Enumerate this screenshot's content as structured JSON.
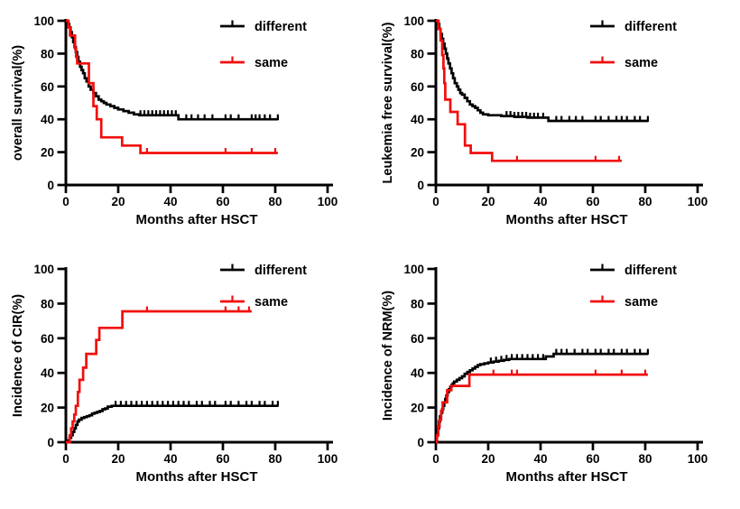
{
  "figure": {
    "background": "#ffffff",
    "text_color": "#000000",
    "panels_layout": "2x2"
  },
  "chart_data": [
    {
      "id": "overall-survival",
      "type": "line",
      "subtype": "kaplan-meier-step",
      "ylabel": "overall survival(%)",
      "xlabel": "Months after HSCT",
      "xlim": [
        0,
        100
      ],
      "ylim": [
        0,
        100
      ],
      "xticks": [
        0,
        20,
        40,
        60,
        80,
        100
      ],
      "yticks": [
        0,
        20,
        40,
        60,
        80,
        100
      ],
      "grid": false,
      "legend_position": "top-right",
      "series": [
        {
          "name": "different",
          "color": "#000000",
          "points": [
            [
              0,
              100
            ],
            [
              0.8,
              98
            ],
            [
              1.3,
              96
            ],
            [
              1.8,
              93
            ],
            [
              2.3,
              90
            ],
            [
              2.8,
              87
            ],
            [
              3.3,
              84
            ],
            [
              3.8,
              81
            ],
            [
              4.3,
              78
            ],
            [
              4.8,
              75
            ],
            [
              5.4,
              72
            ],
            [
              6,
              70
            ],
            [
              6.6,
              68
            ],
            [
              7.2,
              65
            ],
            [
              7.9,
              63
            ],
            [
              8.7,
              60
            ],
            [
              9.5,
              58
            ],
            [
              10.5,
              56
            ],
            [
              11.5,
              54
            ],
            [
              12.5,
              52
            ],
            [
              13.5,
              51
            ],
            [
              14.5,
              50
            ],
            [
              15.5,
              49
            ],
            [
              17,
              48
            ],
            [
              18.5,
              47
            ],
            [
              20,
              46
            ],
            [
              22,
              45
            ],
            [
              24,
              44
            ],
            [
              26,
              43
            ],
            [
              28,
              42.5
            ],
            [
              43,
              40
            ],
            [
              81,
              40
            ]
          ],
          "censors": [
            28.5,
            30,
            31.5,
            33,
            34.5,
            36,
            37.5,
            39,
            40.5,
            42,
            46,
            48,
            50.5,
            53,
            56,
            61,
            63,
            66,
            71,
            72.5,
            74,
            76,
            78,
            81
          ]
        },
        {
          "name": "same",
          "color": "#f20d0d",
          "points": [
            [
              0,
              100
            ],
            [
              1,
              96
            ],
            [
              1.6,
              91
            ],
            [
              3.5,
              83
            ],
            [
              3.9,
              78
            ],
            [
              4.3,
              74
            ],
            [
              8.8,
              62
            ],
            [
              10.5,
              48
            ],
            [
              11.8,
              40
            ],
            [
              13.5,
              29
            ],
            [
              21.5,
              24
            ],
            [
              28.5,
              19.5
            ],
            [
              81,
              19.5
            ]
          ],
          "censors": [
            31,
            61,
            71,
            80
          ]
        }
      ]
    },
    {
      "id": "leukemia-free-survival",
      "type": "line",
      "subtype": "kaplan-meier-step",
      "ylabel": "Leukemia free survival(%)",
      "xlabel": "Months after HSCT",
      "xlim": [
        0,
        100
      ],
      "ylim": [
        0,
        100
      ],
      "xticks": [
        0,
        20,
        40,
        60,
        80,
        100
      ],
      "yticks": [
        0,
        20,
        40,
        60,
        80,
        100
      ],
      "grid": false,
      "legend_position": "top-right",
      "series": [
        {
          "name": "different",
          "color": "#000000",
          "points": [
            [
              0,
              100
            ],
            [
              0.8,
              98
            ],
            [
              1.3,
              95
            ],
            [
              1.8,
              92
            ],
            [
              2.3,
              89
            ],
            [
              2.8,
              86
            ],
            [
              3.3,
              83
            ],
            [
              3.8,
              80
            ],
            [
              4.3,
              77
            ],
            [
              4.8,
              74
            ],
            [
              5.4,
              71
            ],
            [
              6,
              68
            ],
            [
              6.6,
              65
            ],
            [
              7.2,
              62
            ],
            [
              8,
              60
            ],
            [
              8.6,
              58
            ],
            [
              9.3,
              56
            ],
            [
              10,
              55
            ],
            [
              11,
              53
            ],
            [
              12,
              51
            ],
            [
              13,
              49
            ],
            [
              14,
              48
            ],
            [
              15,
              47
            ],
            [
              16,
              45.5
            ],
            [
              17,
              44
            ],
            [
              18,
              43
            ],
            [
              20,
              42.5
            ],
            [
              25,
              42
            ],
            [
              30,
              41.5
            ],
            [
              35,
              41
            ],
            [
              43,
              39
            ],
            [
              81,
              39
            ]
          ],
          "censors": [
            27,
            28.5,
            30,
            31.5,
            33,
            34.5,
            36,
            37.5,
            39,
            41,
            46,
            48,
            51,
            53.5,
            56,
            61,
            63,
            66,
            69,
            71,
            73,
            76,
            78,
            81
          ]
        },
        {
          "name": "same",
          "color": "#f20d0d",
          "points": [
            [
              0,
              100
            ],
            [
              1,
              95
            ],
            [
              1.8,
              88
            ],
            [
              2.4,
              79
            ],
            [
              2.9,
              71
            ],
            [
              3.2,
              62
            ],
            [
              3.6,
              52
            ],
            [
              5.5,
              44.5
            ],
            [
              8.3,
              37
            ],
            [
              11.1,
              24
            ],
            [
              13.3,
              19.5
            ],
            [
              21.5,
              14.7
            ],
            [
              71,
              14.7
            ]
          ],
          "censors": [
            31,
            61,
            70
          ]
        }
      ]
    },
    {
      "id": "incidence-of-cir",
      "type": "line",
      "subtype": "cumulative-incidence-step",
      "ylabel": "Incidence of CIR(%)",
      "xlabel": "Months after HSCT",
      "xlim": [
        0,
        100
      ],
      "ylim": [
        0,
        100
      ],
      "xticks": [
        0,
        20,
        40,
        60,
        80,
        100
      ],
      "yticks": [
        0,
        20,
        40,
        60,
        80,
        100
      ],
      "grid": false,
      "legend_position": "top-right",
      "series": [
        {
          "name": "different",
          "color": "#000000",
          "points": [
            [
              0,
              0
            ],
            [
              0.8,
              1
            ],
            [
              1.4,
              2.5
            ],
            [
              2,
              4
            ],
            [
              2.6,
              6
            ],
            [
              3.2,
              8
            ],
            [
              3.8,
              10
            ],
            [
              4.4,
              12
            ],
            [
              5,
              13
            ],
            [
              6,
              14
            ],
            [
              7,
              14.5
            ],
            [
              8,
              15
            ],
            [
              9,
              15.5
            ],
            [
              10,
              16.5
            ],
            [
              11,
              17
            ],
            [
              12,
              17.5
            ],
            [
              13,
              18
            ],
            [
              14,
              19
            ],
            [
              15,
              19.5
            ],
            [
              16,
              20.5
            ],
            [
              17.5,
              21
            ],
            [
              81,
              21
            ]
          ],
          "censors": [
            19,
            21,
            23,
            25,
            27,
            29,
            31,
            33,
            35,
            37,
            39,
            41,
            43,
            45,
            47,
            50,
            52,
            55,
            57,
            61,
            63,
            66,
            69,
            71,
            74,
            76,
            79,
            81
          ]
        },
        {
          "name": "same",
          "color": "#f20d0d",
          "points": [
            [
              0,
              0
            ],
            [
              1.5,
              4
            ],
            [
              2,
              8
            ],
            [
              2.6,
              12
            ],
            [
              3.2,
              16
            ],
            [
              3.8,
              21
            ],
            [
              4.6,
              29
            ],
            [
              5.2,
              36
            ],
            [
              6.6,
              43
            ],
            [
              7.8,
              51
            ],
            [
              11.6,
              59
            ],
            [
              12.8,
              66
            ],
            [
              21.6,
              75.5
            ],
            [
              71,
              75.5
            ]
          ],
          "censors": [
            31,
            61,
            66,
            70
          ]
        }
      ]
    },
    {
      "id": "incidence-of-nrm",
      "type": "line",
      "subtype": "cumulative-incidence-step",
      "ylabel": "Incidence of NRM(%)",
      "xlabel": "Months after HSCT",
      "xlim": [
        0,
        100
      ],
      "ylim": [
        0,
        100
      ],
      "xticks": [
        0,
        20,
        40,
        60,
        80,
        100
      ],
      "yticks": [
        0,
        20,
        40,
        60,
        80,
        100
      ],
      "grid": false,
      "legend_position": "top-right",
      "series": [
        {
          "name": "different",
          "color": "#000000",
          "points": [
            [
              0,
              0
            ],
            [
              0.4,
              4
            ],
            [
              0.8,
              8
            ],
            [
              1.2,
              12
            ],
            [
              1.6,
              15
            ],
            [
              2,
              17
            ],
            [
              2.4,
              19
            ],
            [
              2.8,
              21
            ],
            [
              3.2,
              23
            ],
            [
              3.6,
              25
            ],
            [
              4,
              27
            ],
            [
              4.5,
              29
            ],
            [
              5,
              30.5
            ],
            [
              5.5,
              32
            ],
            [
              6,
              33
            ],
            [
              6.5,
              34
            ],
            [
              7,
              35
            ],
            [
              8,
              36
            ],
            [
              9,
              37
            ],
            [
              10,
              38
            ],
            [
              11,
              39.5
            ],
            [
              12,
              40.5
            ],
            [
              13,
              41.5
            ],
            [
              14,
              42.5
            ],
            [
              15,
              43.5
            ],
            [
              16,
              44.5
            ],
            [
              17,
              45
            ],
            [
              18.5,
              45.5
            ],
            [
              20,
              46
            ],
            [
              22,
              46.5
            ],
            [
              24,
              47
            ],
            [
              26,
              47.5
            ],
            [
              28,
              48
            ],
            [
              42,
              49.5
            ],
            [
              45,
              51
            ],
            [
              81,
              51
            ]
          ],
          "censors": [
            21,
            23,
            25,
            27,
            29,
            31,
            33,
            35,
            37,
            39,
            41,
            46,
            48,
            50,
            53,
            56,
            58,
            61,
            63,
            66,
            68,
            71,
            73,
            76,
            78,
            81
          ]
        },
        {
          "name": "same",
          "color": "#f20d0d",
          "points": [
            [
              0,
              0
            ],
            [
              0.4,
              4
            ],
            [
              0.9,
              9
            ],
            [
              1.4,
              13
            ],
            [
              2,
              18
            ],
            [
              2.6,
              23
            ],
            [
              4.3,
              30
            ],
            [
              5.9,
              32.5
            ],
            [
              12.8,
              39
            ],
            [
              81,
              39
            ]
          ],
          "censors": [
            22,
            29,
            31,
            61,
            71,
            80
          ]
        }
      ]
    }
  ]
}
